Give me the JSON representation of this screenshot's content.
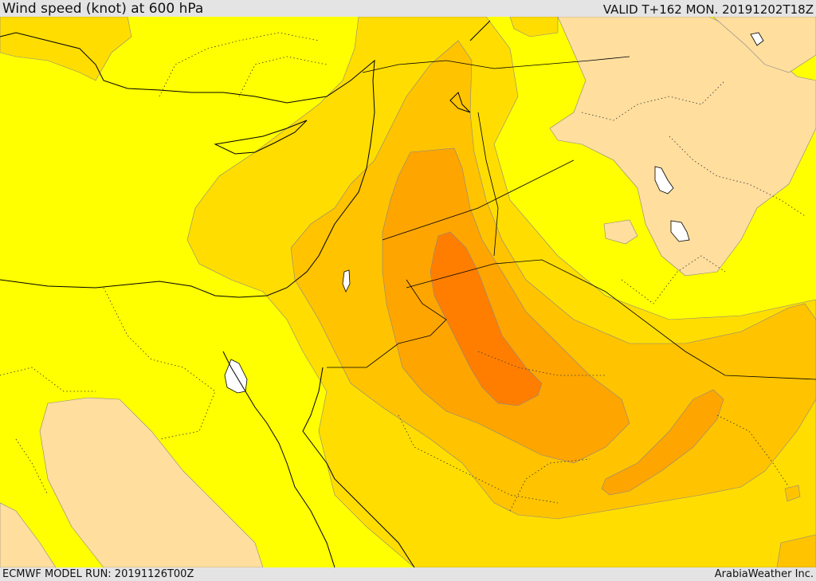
{
  "header": {
    "title": "Wind speed (knot) at 600 hPa",
    "valid": "VALID T+162 MON. 20191202T18Z"
  },
  "footer": {
    "model_run": "ECMWF MODEL RUN: 20191126T00Z",
    "credit": "ArabiaWeather Inc."
  },
  "map": {
    "region": "Eastern Mediterranean, Levant, Egypt, Arabian Peninsula, Iraq, Iran",
    "shading_colors": {
      "level_1": "#ffde9e",
      "level_2": "#ffff00",
      "level_3": "#ffdd00",
      "level_4": "#ffc300",
      "level_5": "#ffa500",
      "level_6": "#ff7e00"
    },
    "sea_color": "#ffffff"
  }
}
